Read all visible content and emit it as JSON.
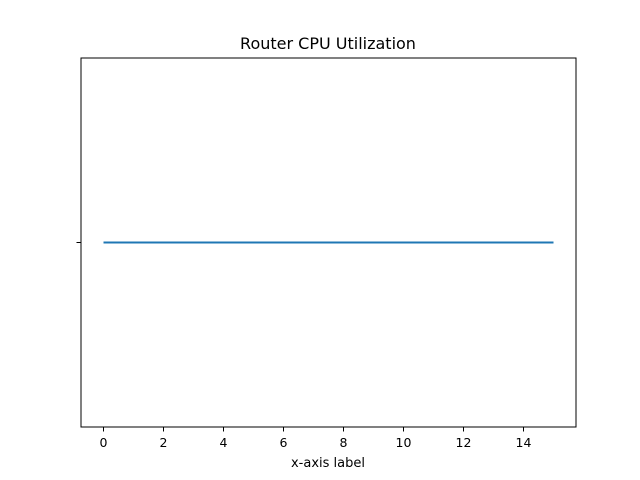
{
  "chart_data": {
    "type": "line",
    "title": "Router CPU Utilization",
    "xlabel": "x-axis label",
    "ylabel": "",
    "xlim": [
      -0.75,
      15.75
    ],
    "ylim": [
      -1,
      1
    ],
    "xticks": [
      0,
      2,
      4,
      6,
      8,
      10,
      12,
      14
    ],
    "xtick_labels": [
      "0",
      "2",
      "4",
      "6",
      "8",
      "10",
      "12",
      "14"
    ],
    "yticks": [
      0
    ],
    "ytick_labels": [
      ""
    ],
    "grid": false,
    "legend": "none",
    "series": [
      {
        "color": "#1f77b4",
        "x": [
          0,
          15
        ],
        "y": [
          0,
          0
        ]
      }
    ]
  }
}
